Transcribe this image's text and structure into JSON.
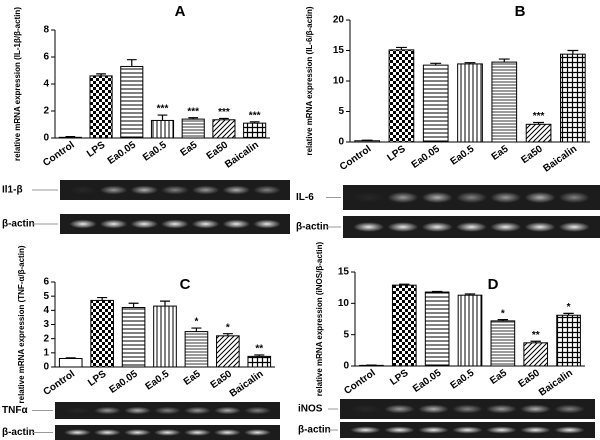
{
  "chart_data": [
    {
      "type": "bar",
      "panel": "A",
      "y_label": "relative mRNA expression (IL-1β/β-actin)",
      "categories": [
        "Control",
        "LPS",
        "Ea0.05",
        "Ea0.5",
        "Ea5",
        "Ea50",
        "Baicalin"
      ],
      "values": [
        0.05,
        4.6,
        5.3,
        1.3,
        1.4,
        1.35,
        1.1
      ],
      "errors": [
        0.05,
        0.15,
        0.5,
        0.4,
        0.1,
        0.1,
        0.1
      ],
      "value_annotations": [
        null,
        null,
        null,
        "***",
        "***",
        "***",
        "***"
      ],
      "ylim": [
        0,
        8
      ],
      "yticks": [
        0,
        2,
        4,
        6,
        8
      ],
      "color": "#000000",
      "gel_labels": [
        "Il1-β",
        "β-actin"
      ]
    },
    {
      "type": "bar",
      "panel": "B",
      "y_label": "relative mRNA expression (IL-6/β-actin)",
      "categories": [
        "Control",
        "LPS",
        "Ea0.05",
        "Ea0.5",
        "Ea5",
        "Ea50",
        "Baicalin"
      ],
      "values": [
        0.2,
        15.1,
        12.6,
        12.8,
        13.1,
        2.9,
        14.4
      ],
      "errors": [
        0.1,
        0.4,
        0.3,
        0.2,
        0.5,
        0.3,
        0.6
      ],
      "value_annotations": [
        null,
        null,
        null,
        null,
        null,
        "***",
        null
      ],
      "ylim": [
        0,
        20
      ],
      "yticks": [
        0,
        5,
        10,
        15,
        20
      ],
      "color": "#000000",
      "gel_labels": [
        "IL-6",
        "β-actin"
      ]
    },
    {
      "type": "bar",
      "panel": "C",
      "y_label": "relative mRNA expression (TNF-α/β-actin)",
      "categories": [
        "Control",
        "LPS",
        "Ea0.05",
        "Ea0.5",
        "Ea5",
        "Ea50",
        "Baicalin"
      ],
      "values": [
        0.6,
        4.7,
        4.2,
        4.3,
        2.5,
        2.2,
        0.75
      ],
      "errors": [
        0.05,
        0.2,
        0.3,
        0.35,
        0.25,
        0.15,
        0.1
      ],
      "value_annotations": [
        null,
        null,
        null,
        null,
        "*",
        "*",
        "**"
      ],
      "ylim": [
        0,
        6
      ],
      "yticks": [
        0,
        1,
        2,
        3,
        4,
        5,
        6
      ],
      "color": "#000000",
      "gel_labels": [
        "TNFα",
        "β-actin"
      ]
    },
    {
      "type": "bar",
      "panel": "D",
      "y_label": "relative mRNA expression (iNOS/β-actin)",
      "categories": [
        "Control",
        "LPS",
        "Ea0.05",
        "Ea0.5",
        "Ea5",
        "Ea50",
        "Baicalin"
      ],
      "values": [
        0.1,
        12.9,
        11.8,
        11.3,
        7.2,
        3.7,
        8.1
      ],
      "errors": [
        0.05,
        0.15,
        0.1,
        0.2,
        0.2,
        0.25,
        0.3
      ],
      "value_annotations": [
        null,
        null,
        null,
        null,
        "*",
        "**",
        "*"
      ],
      "ylim": [
        0,
        15
      ],
      "yticks": [
        0,
        5,
        10,
        15
      ],
      "color": "#000000",
      "gel_labels": [
        "iNOS",
        "β-actin"
      ]
    }
  ]
}
